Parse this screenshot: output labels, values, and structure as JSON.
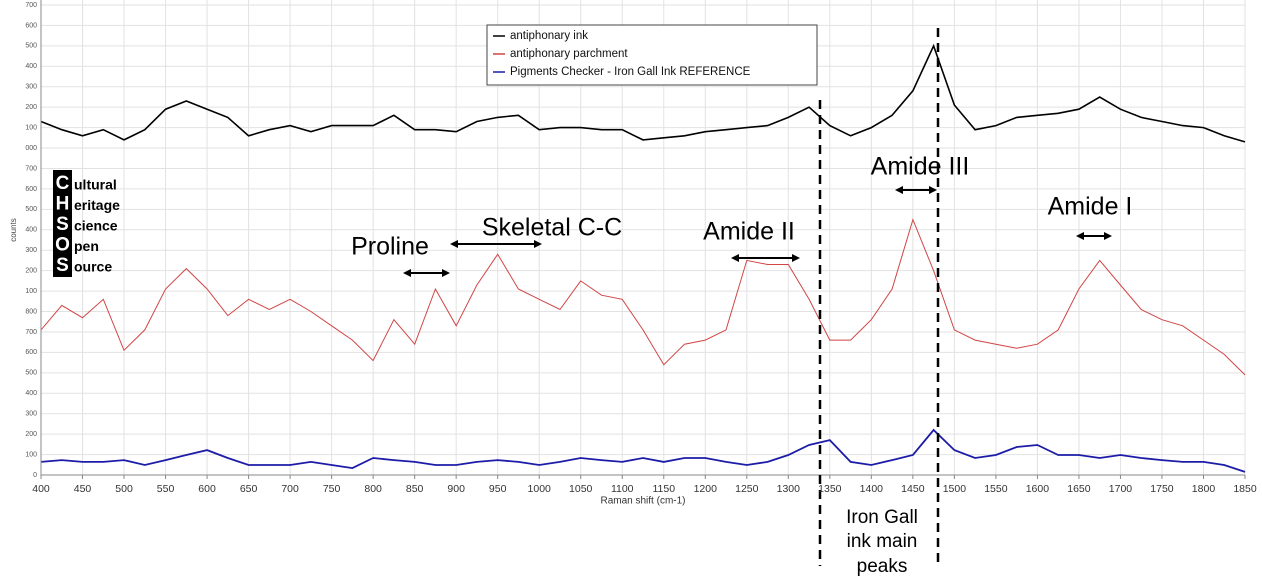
{
  "chart_data": {
    "type": "line",
    "x_label": "Raman shift (cm-1)",
    "y_label": "counts",
    "x": [
      400,
      425,
      450,
      475,
      500,
      525,
      550,
      575,
      600,
      625,
      650,
      675,
      700,
      725,
      750,
      775,
      800,
      825,
      850,
      875,
      900,
      925,
      950,
      975,
      1000,
      1025,
      1050,
      1075,
      1100,
      1125,
      1150,
      1175,
      1200,
      1225,
      1250,
      1275,
      1300,
      1325,
      1350,
      1375,
      1400,
      1425,
      1450,
      1475,
      1500,
      1525,
      1550,
      1575,
      1600,
      1625,
      1650,
      1675,
      1700,
      1725,
      1750,
      1775,
      1800,
      1825,
      1850
    ],
    "series": [
      {
        "name": "antiphonary ink",
        "color": "#000000",
        "values": [
          1730,
          1690,
          1660,
          1690,
          1640,
          1690,
          1790,
          1830,
          1790,
          1750,
          1660,
          1690,
          1710,
          1680,
          1710,
          1710,
          1710,
          1760,
          1690,
          1690,
          1680,
          1730,
          1750,
          1760,
          1690,
          1700,
          1700,
          1690,
          1690,
          1640,
          1650,
          1660,
          1680,
          1690,
          1700,
          1710,
          1750,
          1800,
          1710,
          1660,
          1700,
          1760,
          1880,
          2100,
          1810,
          1690,
          1710,
          1750,
          1760,
          1770,
          1790,
          1850,
          1790,
          1750,
          1730,
          1710,
          1700,
          1660,
          1630
        ]
      },
      {
        "name": "antiphonary parchment",
        "color": "#d04545",
        "values": [
          710,
          830,
          770,
          860,
          610,
          710,
          910,
          1010,
          910,
          780,
          860,
          810,
          860,
          800,
          730,
          660,
          560,
          760,
          640,
          910,
          730,
          930,
          1080,
          910,
          860,
          810,
          950,
          880,
          860,
          710,
          540,
          640,
          660,
          710,
          1050,
          1030,
          1030,
          860,
          660,
          660,
          760,
          910,
          1250,
          1000,
          710,
          660,
          640,
          620,
          640,
          710,
          910,
          1050,
          930,
          810,
          760,
          730,
          660,
          590,
          490
        ]
      },
      {
        "name": "Pigments Checker - Iron Gall Ink REFERENCE",
        "color": "#1c1ca8",
        "values": [
          64,
          73,
          64,
          64,
          73,
          49,
          73,
          98,
          122,
          83,
          49,
          49,
          49,
          64,
          49,
          34,
          83,
          73,
          64,
          49,
          49,
          64,
          73,
          64,
          49,
          64,
          83,
          73,
          64,
          83,
          64,
          83,
          83,
          64,
          49,
          64,
          98,
          147,
          171,
          64,
          49,
          73,
          98,
          220,
          122,
          83,
          98,
          137,
          147,
          98,
          98,
          83,
          98,
          83,
          73,
          64,
          64,
          49,
          15
        ]
      }
    ],
    "xlim": [
      400,
      1850
    ],
    "xticks": [
      400,
      450,
      500,
      550,
      600,
      650,
      700,
      750,
      800,
      850,
      900,
      950,
      1000,
      1050,
      1100,
      1150,
      1200,
      1250,
      1300,
      1350,
      1400,
      1450,
      1500,
      1550,
      1600,
      1650,
      1700,
      1750,
      1800,
      1850
    ],
    "ylim": [
      0,
      2300
    ],
    "yticks": [
      0,
      100,
      200,
      300,
      400,
      500,
      600,
      700,
      800,
      {
        "value": 900,
        "label": "100"
      },
      {
        "value": 1000,
        "label": "200"
      },
      {
        "value": 1100,
        "label": "300"
      },
      {
        "value": 1200,
        "label": "400"
      },
      {
        "value": 1300,
        "label": "500"
      },
      {
        "value": 1400,
        "label": "600"
      },
      {
        "value": 1500,
        "label": "700"
      },
      {
        "value": 1600,
        "label": "000"
      },
      {
        "value": 1700,
        "label": "100"
      },
      {
        "value": 1800,
        "label": "200"
      },
      {
        "value": 1900,
        "label": "300"
      },
      {
        "value": 2000,
        "label": "400"
      },
      {
        "value": 2100,
        "label": "500"
      },
      {
        "value": 2200,
        "label": "600"
      },
      {
        "value": 2300,
        "label": "700"
      }
    ],
    "grid": true,
    "legend": "top",
    "annotations": [
      "Proline",
      "Skeletal C-C",
      "Amide II",
      "Amide III",
      "Amide I",
      "Iron Gall",
      "ink main",
      "peaks"
    ]
  },
  "logo": {
    "letters": [
      "C",
      "H",
      "S",
      "O",
      "S"
    ],
    "words": [
      "ultural",
      "eritage",
      "cience",
      "pen",
      "ource"
    ]
  }
}
